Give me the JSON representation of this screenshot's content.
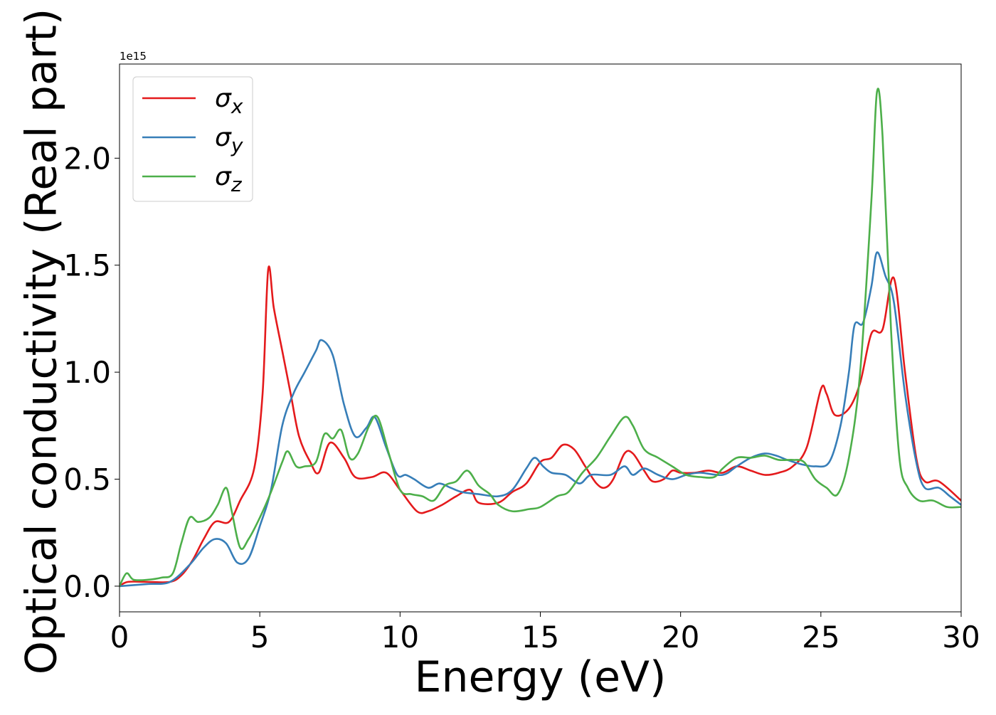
{
  "chart_data": {
    "type": "line",
    "xlabel": "Energy (eV)",
    "ylabel": "Optical conductivity (Real part)",
    "offset_label": "1e15",
    "xlim": [
      0,
      30
    ],
    "ylim": [
      -0.12,
      2.44
    ],
    "x_ticks": [
      0,
      5,
      10,
      15,
      20,
      25,
      30
    ],
    "x_tick_labels": [
      "0",
      "5",
      "10",
      "15",
      "20",
      "25",
      "30"
    ],
    "y_ticks": [
      0.0,
      0.5,
      1.0,
      1.5,
      2.0
    ],
    "y_tick_labels": [
      "0.0",
      "0.5",
      "1.0",
      "1.5",
      "2.0"
    ],
    "grid": false,
    "legend_position": "top-left",
    "series": [
      {
        "name": "σx",
        "sub": "x",
        "color": "#e41a1c",
        "points": [
          [
            0,
            0
          ],
          [
            0.3,
            0.02
          ],
          [
            1,
            0.02
          ],
          [
            1.8,
            0.02
          ],
          [
            2.2,
            0.05
          ],
          [
            2.6,
            0.12
          ],
          [
            3,
            0.22
          ],
          [
            3.4,
            0.3
          ],
          [
            3.9,
            0.3
          ],
          [
            4.3,
            0.4
          ],
          [
            4.8,
            0.55
          ],
          [
            5.1,
            0.9
          ],
          [
            5.3,
            1.48
          ],
          [
            5.5,
            1.3
          ],
          [
            5.8,
            1.1
          ],
          [
            6.1,
            0.9
          ],
          [
            6.4,
            0.7
          ],
          [
            6.8,
            0.58
          ],
          [
            7.1,
            0.53
          ],
          [
            7.5,
            0.67
          ],
          [
            8,
            0.6
          ],
          [
            8.4,
            0.51
          ],
          [
            9,
            0.51
          ],
          [
            9.5,
            0.53
          ],
          [
            10,
            0.45
          ],
          [
            10.6,
            0.35
          ],
          [
            11,
            0.35
          ],
          [
            11.5,
            0.38
          ],
          [
            12,
            0.42
          ],
          [
            12.5,
            0.45
          ],
          [
            12.8,
            0.39
          ],
          [
            13.5,
            0.39
          ],
          [
            14,
            0.44
          ],
          [
            14.5,
            0.48
          ],
          [
            15,
            0.58
          ],
          [
            15.4,
            0.6
          ],
          [
            15.8,
            0.66
          ],
          [
            16.2,
            0.64
          ],
          [
            16.6,
            0.56
          ],
          [
            17,
            0.48
          ],
          [
            17.3,
            0.46
          ],
          [
            17.6,
            0.5
          ],
          [
            18,
            0.62
          ],
          [
            18.3,
            0.62
          ],
          [
            18.7,
            0.54
          ],
          [
            19,
            0.49
          ],
          [
            19.4,
            0.5
          ],
          [
            19.7,
            0.54
          ],
          [
            20,
            0.53
          ],
          [
            20.5,
            0.53
          ],
          [
            21,
            0.54
          ],
          [
            21.5,
            0.53
          ],
          [
            22,
            0.56
          ],
          [
            22.5,
            0.54
          ],
          [
            23,
            0.52
          ],
          [
            23.5,
            0.53
          ],
          [
            24,
            0.56
          ],
          [
            24.5,
            0.65
          ],
          [
            25,
            0.92
          ],
          [
            25.2,
            0.9
          ],
          [
            25.5,
            0.8
          ],
          [
            26,
            0.83
          ],
          [
            26.4,
            0.95
          ],
          [
            26.8,
            1.18
          ],
          [
            27.2,
            1.2
          ],
          [
            27.6,
            1.44
          ],
          [
            28,
            1.0
          ],
          [
            28.4,
            0.6
          ],
          [
            28.7,
            0.49
          ],
          [
            29.2,
            0.49
          ],
          [
            30,
            0.4
          ]
        ]
      },
      {
        "name": "σy",
        "sub": "y",
        "color": "#377eb8",
        "points": [
          [
            0,
            0
          ],
          [
            1,
            0.01
          ],
          [
            1.8,
            0.02
          ],
          [
            2.5,
            0.1
          ],
          [
            3,
            0.18
          ],
          [
            3.4,
            0.22
          ],
          [
            3.8,
            0.2
          ],
          [
            4.2,
            0.11
          ],
          [
            4.6,
            0.13
          ],
          [
            5,
            0.28
          ],
          [
            5.4,
            0.45
          ],
          [
            5.8,
            0.75
          ],
          [
            6.2,
            0.9
          ],
          [
            6.6,
            1.0
          ],
          [
            7,
            1.1
          ],
          [
            7.2,
            1.15
          ],
          [
            7.6,
            1.08
          ],
          [
            8,
            0.85
          ],
          [
            8.4,
            0.7
          ],
          [
            8.8,
            0.74
          ],
          [
            9.1,
            0.79
          ],
          [
            9.5,
            0.65
          ],
          [
            9.9,
            0.52
          ],
          [
            10.2,
            0.52
          ],
          [
            10.5,
            0.5
          ],
          [
            11,
            0.46
          ],
          [
            11.4,
            0.48
          ],
          [
            11.8,
            0.46
          ],
          [
            12.2,
            0.44
          ],
          [
            12.8,
            0.43
          ],
          [
            13.5,
            0.42
          ],
          [
            14,
            0.45
          ],
          [
            14.5,
            0.55
          ],
          [
            14.8,
            0.6
          ],
          [
            15.1,
            0.56
          ],
          [
            15.4,
            0.53
          ],
          [
            15.9,
            0.52
          ],
          [
            16.4,
            0.48
          ],
          [
            16.8,
            0.52
          ],
          [
            17.5,
            0.52
          ],
          [
            18,
            0.56
          ],
          [
            18.3,
            0.52
          ],
          [
            18.7,
            0.55
          ],
          [
            19.2,
            0.52
          ],
          [
            19.7,
            0.5
          ],
          [
            20.2,
            0.52
          ],
          [
            20.7,
            0.53
          ],
          [
            21.5,
            0.52
          ],
          [
            22,
            0.56
          ],
          [
            22.5,
            0.6
          ],
          [
            23,
            0.62
          ],
          [
            23.4,
            0.61
          ],
          [
            23.8,
            0.59
          ],
          [
            24.3,
            0.57
          ],
          [
            24.8,
            0.56
          ],
          [
            25.3,
            0.58
          ],
          [
            25.7,
            0.75
          ],
          [
            26,
            1.0
          ],
          [
            26.2,
            1.22
          ],
          [
            26.5,
            1.23
          ],
          [
            26.8,
            1.4
          ],
          [
            27,
            1.56
          ],
          [
            27.3,
            1.45
          ],
          [
            27.6,
            1.33
          ],
          [
            28,
            0.9
          ],
          [
            28.4,
            0.58
          ],
          [
            28.7,
            0.46
          ],
          [
            29.2,
            0.46
          ],
          [
            29.6,
            0.42
          ],
          [
            30,
            0.38
          ]
        ]
      },
      {
        "name": "σz",
        "sub": "z",
        "color": "#4daf4a",
        "points": [
          [
            0,
            0
          ],
          [
            0.25,
            0.06
          ],
          [
            0.5,
            0.03
          ],
          [
            1,
            0.03
          ],
          [
            1.5,
            0.04
          ],
          [
            1.9,
            0.06
          ],
          [
            2.2,
            0.2
          ],
          [
            2.5,
            0.32
          ],
          [
            2.8,
            0.3
          ],
          [
            3.2,
            0.32
          ],
          [
            3.5,
            0.38
          ],
          [
            3.8,
            0.46
          ],
          [
            4,
            0.35
          ],
          [
            4.3,
            0.18
          ],
          [
            4.6,
            0.22
          ],
          [
            5,
            0.32
          ],
          [
            5.4,
            0.44
          ],
          [
            5.8,
            0.58
          ],
          [
            6,
            0.63
          ],
          [
            6.3,
            0.56
          ],
          [
            6.6,
            0.56
          ],
          [
            7,
            0.58
          ],
          [
            7.3,
            0.71
          ],
          [
            7.6,
            0.69
          ],
          [
            7.9,
            0.73
          ],
          [
            8.2,
            0.6
          ],
          [
            8.5,
            0.62
          ],
          [
            8.9,
            0.75
          ],
          [
            9.2,
            0.79
          ],
          [
            9.6,
            0.62
          ],
          [
            10,
            0.45
          ],
          [
            10.4,
            0.43
          ],
          [
            10.8,
            0.42
          ],
          [
            11.2,
            0.4
          ],
          [
            11.6,
            0.47
          ],
          [
            12,
            0.49
          ],
          [
            12.4,
            0.54
          ],
          [
            12.8,
            0.47
          ],
          [
            13.2,
            0.43
          ],
          [
            13.5,
            0.38
          ],
          [
            14,
            0.35
          ],
          [
            14.6,
            0.36
          ],
          [
            15,
            0.37
          ],
          [
            15.6,
            0.42
          ],
          [
            16,
            0.44
          ],
          [
            16.5,
            0.53
          ],
          [
            17,
            0.6
          ],
          [
            17.5,
            0.7
          ],
          [
            18,
            0.79
          ],
          [
            18.3,
            0.75
          ],
          [
            18.7,
            0.64
          ],
          [
            19.2,
            0.6
          ],
          [
            19.7,
            0.56
          ],
          [
            20.2,
            0.52
          ],
          [
            20.7,
            0.51
          ],
          [
            21.2,
            0.51
          ],
          [
            21.5,
            0.55
          ],
          [
            22,
            0.6
          ],
          [
            22.5,
            0.6
          ],
          [
            23,
            0.61
          ],
          [
            23.5,
            0.59
          ],
          [
            24,
            0.59
          ],
          [
            24.4,
            0.58
          ],
          [
            24.8,
            0.5
          ],
          [
            25.2,
            0.46
          ],
          [
            25.6,
            0.43
          ],
          [
            26,
            0.6
          ],
          [
            26.4,
            1.0
          ],
          [
            26.8,
            1.8
          ],
          [
            27,
            2.31
          ],
          [
            27.2,
            2.1
          ],
          [
            27.5,
            1.2
          ],
          [
            27.8,
            0.6
          ],
          [
            28.1,
            0.46
          ],
          [
            28.5,
            0.4
          ],
          [
            29,
            0.4
          ],
          [
            29.5,
            0.37
          ],
          [
            30,
            0.37
          ]
        ]
      }
    ]
  }
}
